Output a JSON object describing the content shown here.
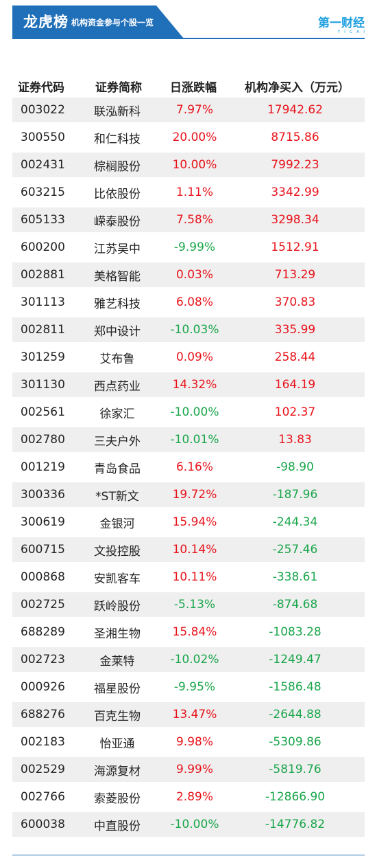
{
  "header": {
    "title": "龙虎榜",
    "subtitle": "机构资金参与个股一览",
    "logo_main": "第一财经",
    "logo_sub": "YICAI"
  },
  "colors": {
    "brand_blue": "#1f6fb9",
    "logo_blue": "#1e9fe0",
    "positive_red": "#e8141c",
    "negative_green": "#19a64a",
    "row_shade": "#efefef"
  },
  "table": {
    "columns": [
      "证券代码",
      "证券简称",
      "日涨跌幅",
      "机构净买入（万元）"
    ],
    "rows": [
      {
        "code": "003022",
        "name": "联泓新科",
        "change": "7.97%",
        "net": "17942.62"
      },
      {
        "code": "300550",
        "name": "和仁科技",
        "change": "20.00%",
        "net": "8715.86"
      },
      {
        "code": "002431",
        "name": "棕榈股份",
        "change": "10.00%",
        "net": "7992.23"
      },
      {
        "code": "603215",
        "name": "比依股份",
        "change": "1.11%",
        "net": "3342.99"
      },
      {
        "code": "605133",
        "name": "嵘泰股份",
        "change": "7.58%",
        "net": "3298.34"
      },
      {
        "code": "600200",
        "name": "江苏吴中",
        "change": "-9.99%",
        "net": "1512.91"
      },
      {
        "code": "002881",
        "name": "美格智能",
        "change": "0.03%",
        "net": "713.29"
      },
      {
        "code": "301113",
        "name": "雅艺科技",
        "change": "6.08%",
        "net": "370.83"
      },
      {
        "code": "002811",
        "name": "郑中设计",
        "change": "-10.03%",
        "net": "335.99"
      },
      {
        "code": "301259",
        "name": "艾布鲁",
        "change": "0.09%",
        "net": "258.44"
      },
      {
        "code": "301130",
        "name": "西点药业",
        "change": "14.32%",
        "net": "164.19"
      },
      {
        "code": "002561",
        "name": "徐家汇",
        "change": "-10.00%",
        "net": "102.37"
      },
      {
        "code": "002780",
        "name": "三夫户外",
        "change": "-10.01%",
        "net": "13.83"
      },
      {
        "code": "001219",
        "name": "青岛食品",
        "change": "6.16%",
        "net": "-98.90"
      },
      {
        "code": "300336",
        "name": "*ST新文",
        "change": "19.72%",
        "net": "-187.96"
      },
      {
        "code": "300619",
        "name": "金银河",
        "change": "15.94%",
        "net": "-244.34"
      },
      {
        "code": "600715",
        "name": "文投控股",
        "change": "10.14%",
        "net": "-257.46"
      },
      {
        "code": "000868",
        "name": "安凯客车",
        "change": "10.11%",
        "net": "-338.61"
      },
      {
        "code": "002725",
        "name": "跃岭股份",
        "change": "-5.13%",
        "net": "-874.68"
      },
      {
        "code": "688289",
        "name": "圣湘生物",
        "change": "15.84%",
        "net": "-1083.28"
      },
      {
        "code": "002723",
        "name": "金莱特",
        "change": "-10.02%",
        "net": "-1249.47"
      },
      {
        "code": "000926",
        "name": "福星股份",
        "change": "-9.95%",
        "net": "-1586.48"
      },
      {
        "code": "688276",
        "name": "百克生物",
        "change": "13.47%",
        "net": "-2644.88"
      },
      {
        "code": "002183",
        "name": "怡亚通",
        "change": "9.98%",
        "net": "-5309.86"
      },
      {
        "code": "002529",
        "name": "海源复材",
        "change": "9.99%",
        "net": "-5819.76"
      },
      {
        "code": "002766",
        "name": "索菱股份",
        "change": "2.89%",
        "net": "-12866.90"
      },
      {
        "code": "600038",
        "name": "中直股份",
        "change": "-10.00%",
        "net": "-14776.82"
      }
    ]
  }
}
